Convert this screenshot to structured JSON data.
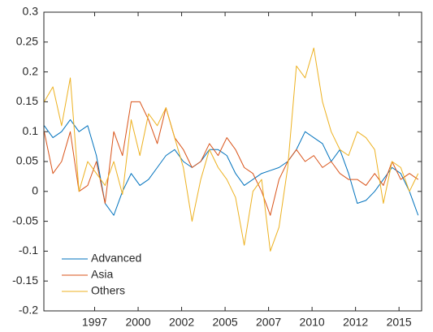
{
  "chart_data": {
    "type": "line",
    "x": [
      1994.1,
      1994.6,
      1995.1,
      1995.6,
      1996.1,
      1996.6,
      1997.1,
      1997.6,
      1998.1,
      1998.6,
      1999.1,
      1999.6,
      2000.1,
      2000.6,
      2001.1,
      2001.6,
      2002.1,
      2002.6,
      2003.1,
      2003.6,
      2004.1,
      2004.6,
      2005.1,
      2005.6,
      2006.1,
      2006.6,
      2007.1,
      2007.6,
      2008.1,
      2008.6,
      2009.1,
      2009.6,
      2010.1,
      2010.6,
      2011.1,
      2011.6,
      2012.1,
      2012.6,
      2013.1,
      2013.6,
      2014.1,
      2014.6,
      2015.1,
      2015.6
    ],
    "series": [
      {
        "name": "Advanced",
        "color": "#0072BD",
        "values": [
          0.11,
          0.09,
          0.1,
          0.12,
          0.1,
          0.11,
          0.06,
          -0.02,
          -0.04,
          0,
          0.03,
          0.01,
          0.02,
          0.04,
          0.06,
          0.07,
          0.05,
          0.04,
          0.05,
          0.07,
          0.07,
          0.06,
          0.03,
          0.01,
          0.02,
          0.03,
          0.035,
          0.04,
          0.05,
          0.07,
          0.1,
          0.09,
          0.08,
          0.05,
          0.07,
          0.03,
          -0.02,
          -0.015,
          0,
          0.02,
          0.04,
          0.03,
          0,
          -0.04
        ]
      },
      {
        "name": "Asia",
        "color": "#D95319",
        "values": [
          0.1,
          0.03,
          0.05,
          0.1,
          0,
          0.01,
          0.05,
          -0.02,
          0.1,
          0.06,
          0.15,
          0.15,
          0.12,
          0.08,
          0.14,
          0.09,
          0.07,
          0.04,
          0.05,
          0.08,
          0.06,
          0.09,
          0.07,
          0.04,
          0.03,
          0,
          -0.04,
          0.02,
          0.05,
          0.07,
          0.05,
          0.06,
          0.04,
          0.05,
          0.03,
          0.02,
          0.02,
          0.01,
          0.03,
          0.01,
          0.05,
          0.02,
          0.03,
          0.02
        ]
      },
      {
        "name": "Others",
        "color": "#EDB120",
        "values": [
          0.15,
          0.175,
          0.11,
          0.19,
          0,
          0.05,
          0.03,
          0.01,
          0.05,
          -0.005,
          0.12,
          0.06,
          0.13,
          0.11,
          0.14,
          0.09,
          0.04,
          -0.05,
          0.02,
          0.07,
          0.04,
          0.02,
          -0.01,
          -0.09,
          0,
          0.02,
          -0.1,
          -0.06,
          0.04,
          0.21,
          0.19,
          0.24,
          0.15,
          0.1,
          0.07,
          0.06,
          0.1,
          0.09,
          0.07,
          -0.02,
          0.05,
          0.04,
          0,
          0.03
        ]
      }
    ],
    "xlim": [
      1994.08,
      2015.8
    ],
    "xticks": [
      {
        "value": 1997,
        "label": "1997"
      },
      {
        "value": 1999.5,
        "label": "2000"
      },
      {
        "value": 2002,
        "label": "2002"
      },
      {
        "value": 2004.5,
        "label": "2005"
      },
      {
        "value": 2007,
        "label": "2007"
      },
      {
        "value": 2009.5,
        "label": "2010"
      },
      {
        "value": 2012,
        "label": "2012"
      },
      {
        "value": 2014.5,
        "label": "2015"
      }
    ],
    "ylim": [
      -0.2,
      0.3
    ],
    "yticks": [
      -0.2,
      -0.15,
      -0.1,
      -0.05,
      0,
      0.05,
      0.1,
      0.15,
      0.2,
      0.25,
      0.3
    ],
    "grid": false,
    "legend": "lower-left"
  }
}
